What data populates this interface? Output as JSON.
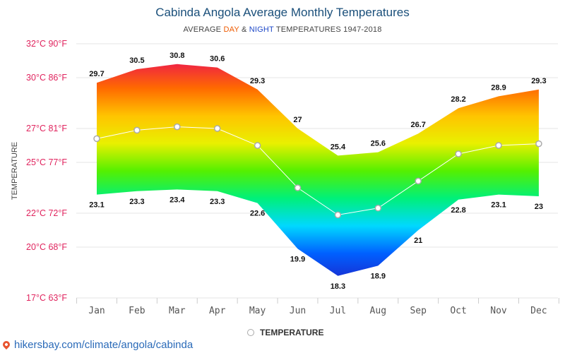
{
  "header": {
    "title": "Cabinda Angola Average Monthly Temperatures",
    "subtitle_pre": "AVERAGE ",
    "subtitle_day": "DAY",
    "subtitle_amp": " & ",
    "subtitle_night": "NIGHT",
    "subtitle_post": " TEMPERATURES 1947-2018"
  },
  "legend": {
    "label": "TEMPERATURE"
  },
  "footer": {
    "url": "hikersbay.com/climate/angola/cabinda"
  },
  "colors": {
    "ytick_label": "#e0245e",
    "xtick_label": "#555555",
    "grid": "#e6e6e6",
    "line": "#ffffff",
    "marker_fill": "#ffffff",
    "marker_stroke": "#aaaaaa",
    "gradient": [
      "#ee1c4a",
      "#ff6a00",
      "#ffc400",
      "#e9f000",
      "#55f000",
      "#00f07a",
      "#00d8ff",
      "#0060ff",
      "#1a2cd0"
    ]
  },
  "chart_data": {
    "type": "area",
    "categories": [
      "Jan",
      "Feb",
      "Mar",
      "Apr",
      "May",
      "Jun",
      "Jul",
      "Aug",
      "Sep",
      "Oct",
      "Nov",
      "Dec"
    ],
    "ylabel": "TEMPERATURE",
    "ylim": [
      17,
      32
    ],
    "yticks": [
      {
        "value": 32,
        "label": "32°C 90°F"
      },
      {
        "value": 30,
        "label": "30°C 86°F"
      },
      {
        "value": 27,
        "label": "27°C 81°F"
      },
      {
        "value": 25,
        "label": "25°C 77°F"
      },
      {
        "value": 22,
        "label": "22°C 72°F"
      },
      {
        "value": 20,
        "label": "20°C 68°F"
      },
      {
        "value": 17,
        "label": "17°C 63°F"
      }
    ],
    "grid": true,
    "series": [
      {
        "name": "day",
        "values": [
          29.7,
          30.5,
          30.8,
          30.6,
          29.3,
          27,
          25.4,
          25.6,
          26.7,
          28.2,
          28.9,
          29.3
        ]
      },
      {
        "name": "night",
        "values": [
          23.1,
          23.3,
          23.4,
          23.3,
          22.6,
          19.9,
          18.3,
          18.9,
          21,
          22.8,
          23.1,
          23
        ]
      },
      {
        "name": "TEMPERATURE",
        "values": [
          26.4,
          26.9,
          27.1,
          27.0,
          26.0,
          23.5,
          21.9,
          22.3,
          23.9,
          25.5,
          26.0,
          26.1
        ]
      }
    ],
    "day_labels": [
      "29.7",
      "30.5",
      "30.8",
      "30.6",
      "29.3",
      "27",
      "25.4",
      "25.6",
      "26.7",
      "28.2",
      "28.9",
      "29.3"
    ],
    "night_labels": [
      "23.1",
      "23.3",
      "23.4",
      "23.3",
      "22.6",
      "19.9",
      "18.3",
      "18.9",
      "21",
      "22.8",
      "23.1",
      "23"
    ]
  }
}
